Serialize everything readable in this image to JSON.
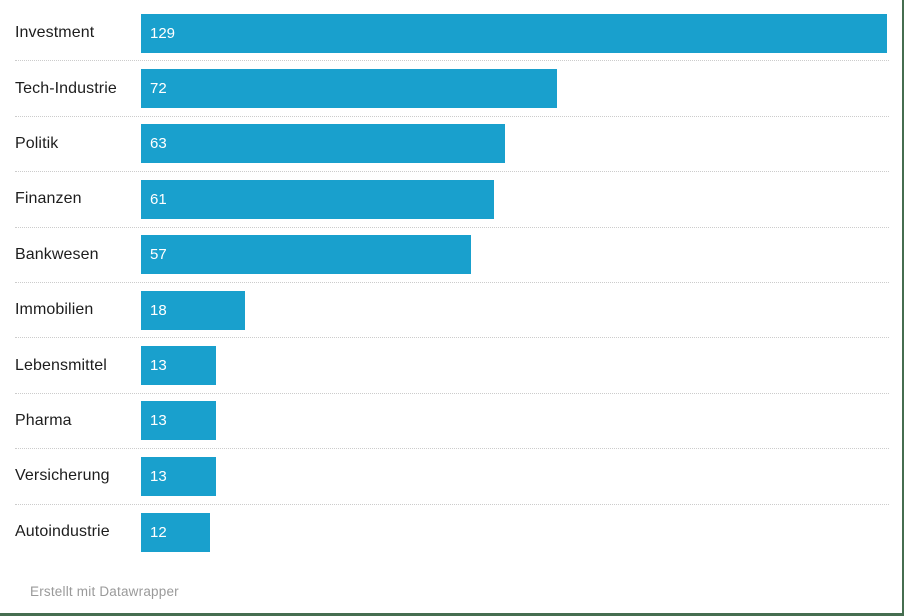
{
  "chart_data": {
    "type": "bar",
    "orientation": "horizontal",
    "title": "",
    "xlabel": "",
    "ylabel": "",
    "categories": [
      "Investment",
      "Tech-Industrie",
      "Politik",
      "Finanzen",
      "Bankwesen",
      "Immobilien",
      "Lebensmittel",
      "Pharma",
      "Versicherung",
      "Autoindustrie"
    ],
    "values": [
      129,
      72,
      63,
      61,
      57,
      18,
      13,
      13,
      13,
      12
    ],
    "xlim": [
      0,
      129
    ],
    "grid": false,
    "legend": "none",
    "value_label_position": "inside-start"
  },
  "footer": {
    "attribution": "Erstellt mit Datawrapper"
  },
  "colors": {
    "bar": "#19A0CD",
    "bar_value_text": "#ffffff",
    "category_text": "#1d1d1d",
    "separator": "#cccccc",
    "footer_text": "#9a9a9a",
    "frame_border": "#466E50",
    "background": "#ffffff"
  }
}
